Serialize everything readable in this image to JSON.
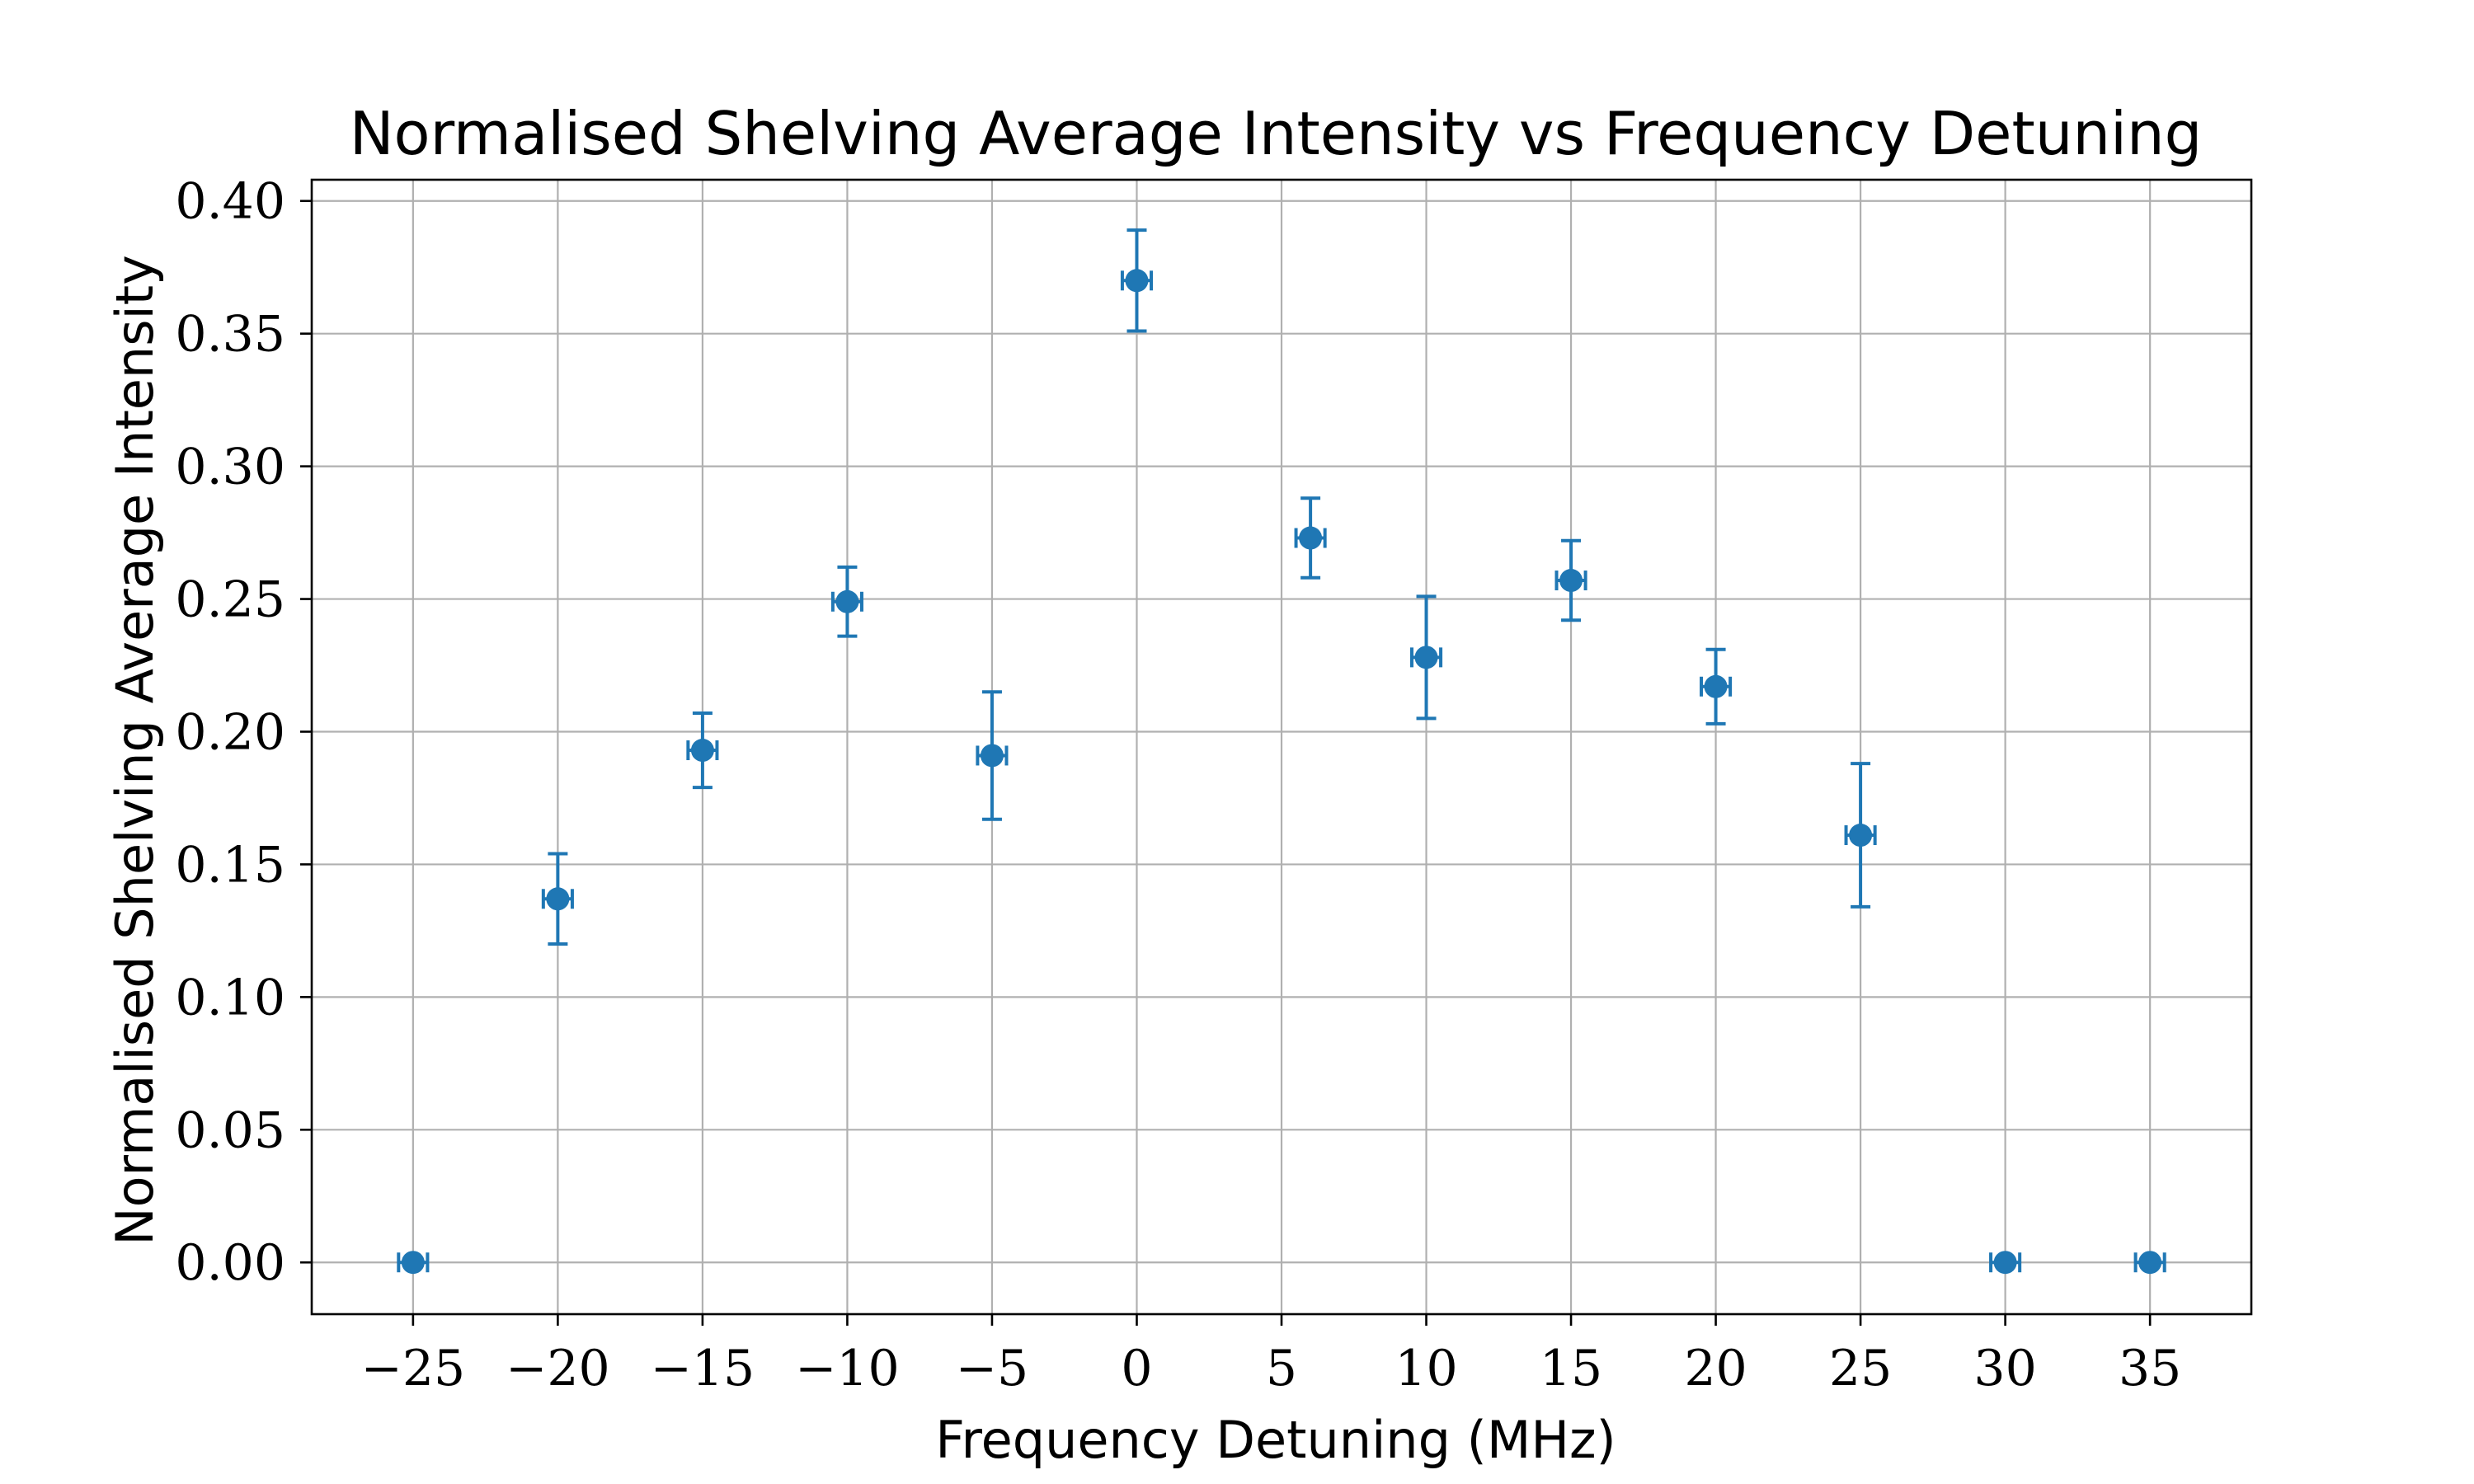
{
  "chart_data": {
    "type": "scatter",
    "title": "Normalised Shelving Average Intensity vs Frequency Detuning",
    "xlabel": "Frequency Detuning (MHz)",
    "ylabel": "Normalised Shelving Average Intensity",
    "xlim": [
      -28.5,
      38.5
    ],
    "ylim": [
      -0.0195,
      0.408
    ],
    "grid": true,
    "marker_color": "#1f77b4",
    "x_ticks": [
      -25,
      -20,
      -15,
      -10,
      -5,
      0,
      5,
      10,
      15,
      20,
      25,
      30,
      35
    ],
    "x_tick_labels": [
      "−25",
      "−20",
      "−15",
      "−10",
      "−5",
      "0",
      "5",
      "10",
      "15",
      "20",
      "25",
      "30",
      "35"
    ],
    "y_ticks": [
      0.0,
      0.05,
      0.1,
      0.15,
      0.2,
      0.25,
      0.3,
      0.35,
      0.4
    ],
    "y_tick_labels": [
      "0.00",
      "0.05",
      "0.10",
      "0.15",
      "0.20",
      "0.25",
      "0.30",
      "0.35",
      "0.40"
    ],
    "points": [
      {
        "x": -25,
        "y": 0.0,
        "yerr": 0.0,
        "xerr": 0.5
      },
      {
        "x": -20,
        "y": 0.137,
        "yerr": 0.017,
        "xerr": 0.5
      },
      {
        "x": -15,
        "y": 0.193,
        "yerr": 0.014,
        "xerr": 0.5
      },
      {
        "x": -10,
        "y": 0.249,
        "yerr": 0.013,
        "xerr": 0.5
      },
      {
        "x": -5,
        "y": 0.191,
        "yerr": 0.024,
        "xerr": 0.5
      },
      {
        "x": 0,
        "y": 0.37,
        "yerr": 0.019,
        "xerr": 0.5
      },
      {
        "x": 6,
        "y": 0.273,
        "yerr": 0.015,
        "xerr": 0.5
      },
      {
        "x": 10,
        "y": 0.228,
        "yerr": 0.023,
        "xerr": 0.5
      },
      {
        "x": 15,
        "y": 0.257,
        "yerr": 0.015,
        "xerr": 0.5
      },
      {
        "x": 20,
        "y": 0.217,
        "yerr": 0.014,
        "xerr": 0.5
      },
      {
        "x": 25,
        "y": 0.161,
        "yerr": 0.027,
        "xerr": 0.5
      },
      {
        "x": 30,
        "y": 0.0,
        "yerr": 0.0,
        "xerr": 0.5
      },
      {
        "x": 35,
        "y": 0.0,
        "yerr": 0.0,
        "xerr": 0.5
      }
    ]
  }
}
